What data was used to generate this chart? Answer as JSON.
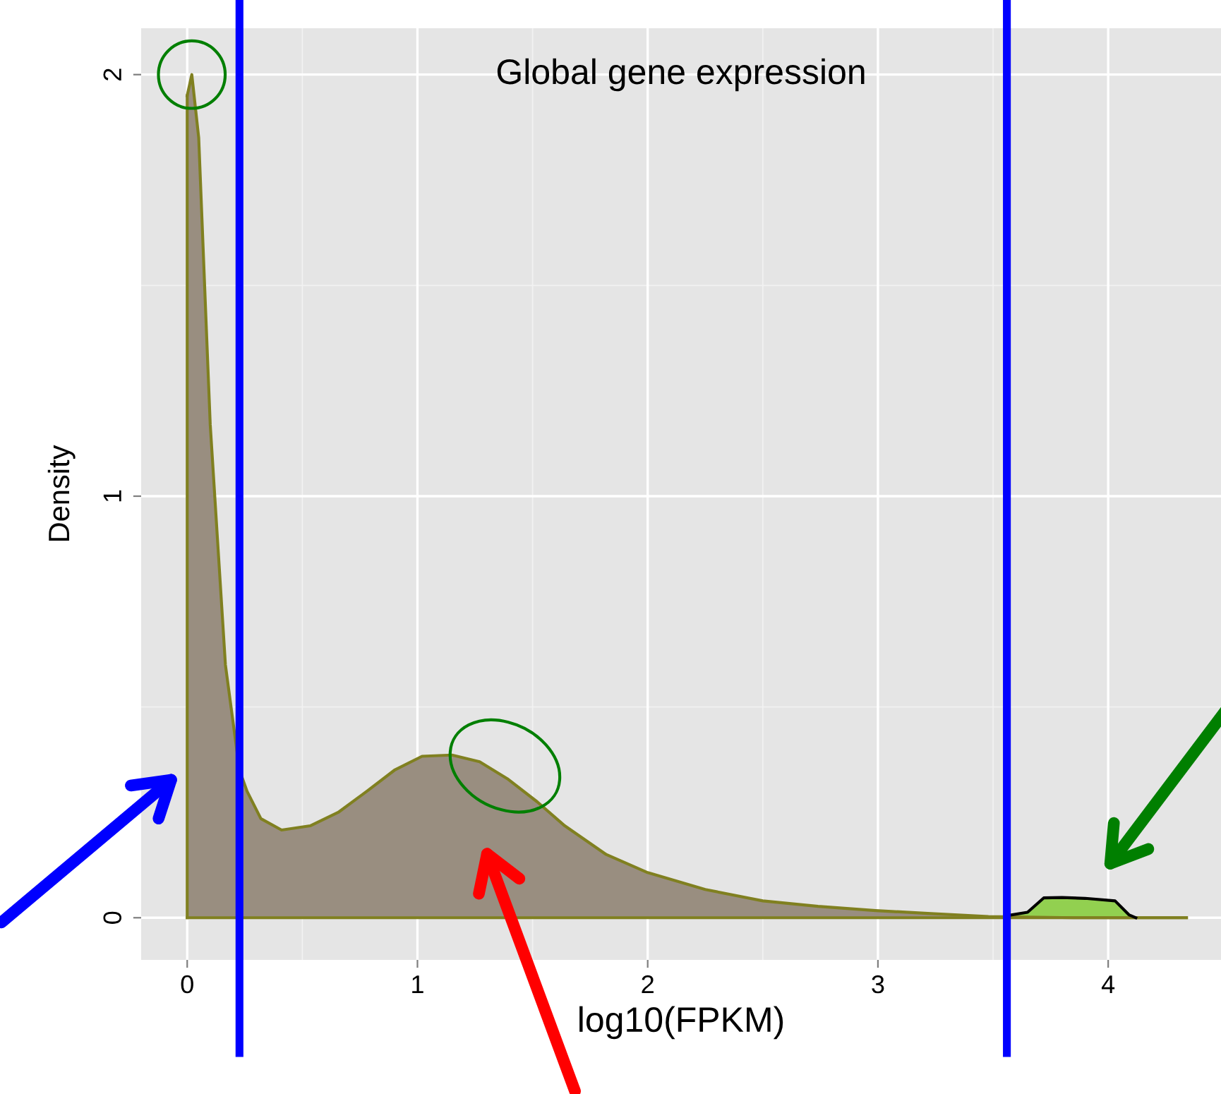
{
  "chart_data": {
    "type": "area",
    "title": "Global gene expression",
    "xlabel": "log10(FPKM)",
    "ylabel": "Density",
    "series": [
      {
        "x": [
          0,
          0.02,
          0.05,
          0.08,
          0.1,
          0.166,
          0.227,
          0.26,
          0.32,
          0.41,
          0.534,
          0.656,
          0.78,
          0.9,
          1.02,
          1.15,
          1.27,
          1.39,
          1.52,
          1.64,
          1.82,
          2.0,
          2.25,
          2.5,
          2.74,
          2.99,
          3.23,
          3.48,
          3.85,
          4.34
        ],
        "values": [
          1.95,
          2.0,
          1.85,
          1.44,
          1.17,
          0.6,
          0.35,
          0.3,
          0.235,
          0.208,
          0.218,
          0.25,
          0.3,
          0.35,
          0.383,
          0.386,
          0.37,
          0.33,
          0.275,
          0.218,
          0.15,
          0.107,
          0.067,
          0.04,
          0.027,
          0.017,
          0.01,
          0.003,
          0,
          0
        ],
        "color": "#998e80"
      },
      {
        "x": [
          3.56,
          3.65,
          3.72,
          3.8,
          3.9,
          4.03,
          4.09,
          4.12
        ],
        "values": [
          0.005,
          0.013,
          0.047,
          0.048,
          0.046,
          0.04,
          0.007,
          0
        ],
        "color": "#92d050"
      }
    ],
    "xlim": [
      -0.2,
      4.49
    ],
    "ylim": [
      -0.1,
      2.11
    ],
    "xticks": [
      0,
      1,
      2,
      3,
      4
    ],
    "yticks": [
      0,
      1,
      2
    ],
    "grid": true,
    "ref_lines": [
      {
        "axis": "x",
        "value": 0.227,
        "color": "#0000ff"
      },
      {
        "axis": "x",
        "value": 3.56,
        "color": "#0000ff"
      }
    ]
  }
}
